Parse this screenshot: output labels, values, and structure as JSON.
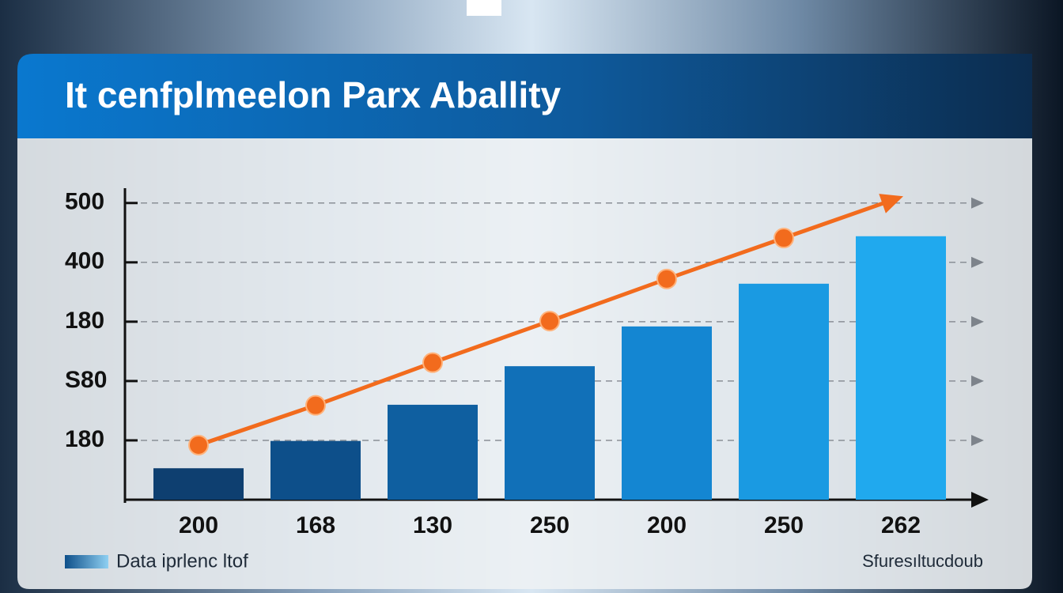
{
  "chart_data": {
    "type": "bar-line",
    "title": "It cenfplmeelon Parx Aballity",
    "source": "Sfuresıltucdoub",
    "categories": [
      "200",
      "168",
      "130",
      "250",
      "200",
      "250",
      "262"
    ],
    "series": [
      {
        "name": "Data iprlenc ltof",
        "type": "bar",
        "color": "#1a86cf",
        "colors": [
          "#0e3f70",
          "#0d4f8a",
          "#0f5fa0",
          "#1170b8",
          "#1486d2",
          "#1a9ae2",
          "#20a9ee"
        ],
        "values": [
          53,
          99,
          160,
          225,
          292,
          364,
          444
        ]
      },
      {
        "type": "line",
        "color": "#f26b1d",
        "values": [
          92,
          159,
          231,
          301,
          372,
          441,
          null
        ]
      }
    ],
    "ylim": [
      0,
      525
    ],
    "yticks": [
      {
        "value": 100,
        "label": "180"
      },
      {
        "value": 200,
        "label": "S80"
      },
      {
        "value": 300,
        "label": "180"
      },
      400,
      500
    ],
    "grid": true
  }
}
